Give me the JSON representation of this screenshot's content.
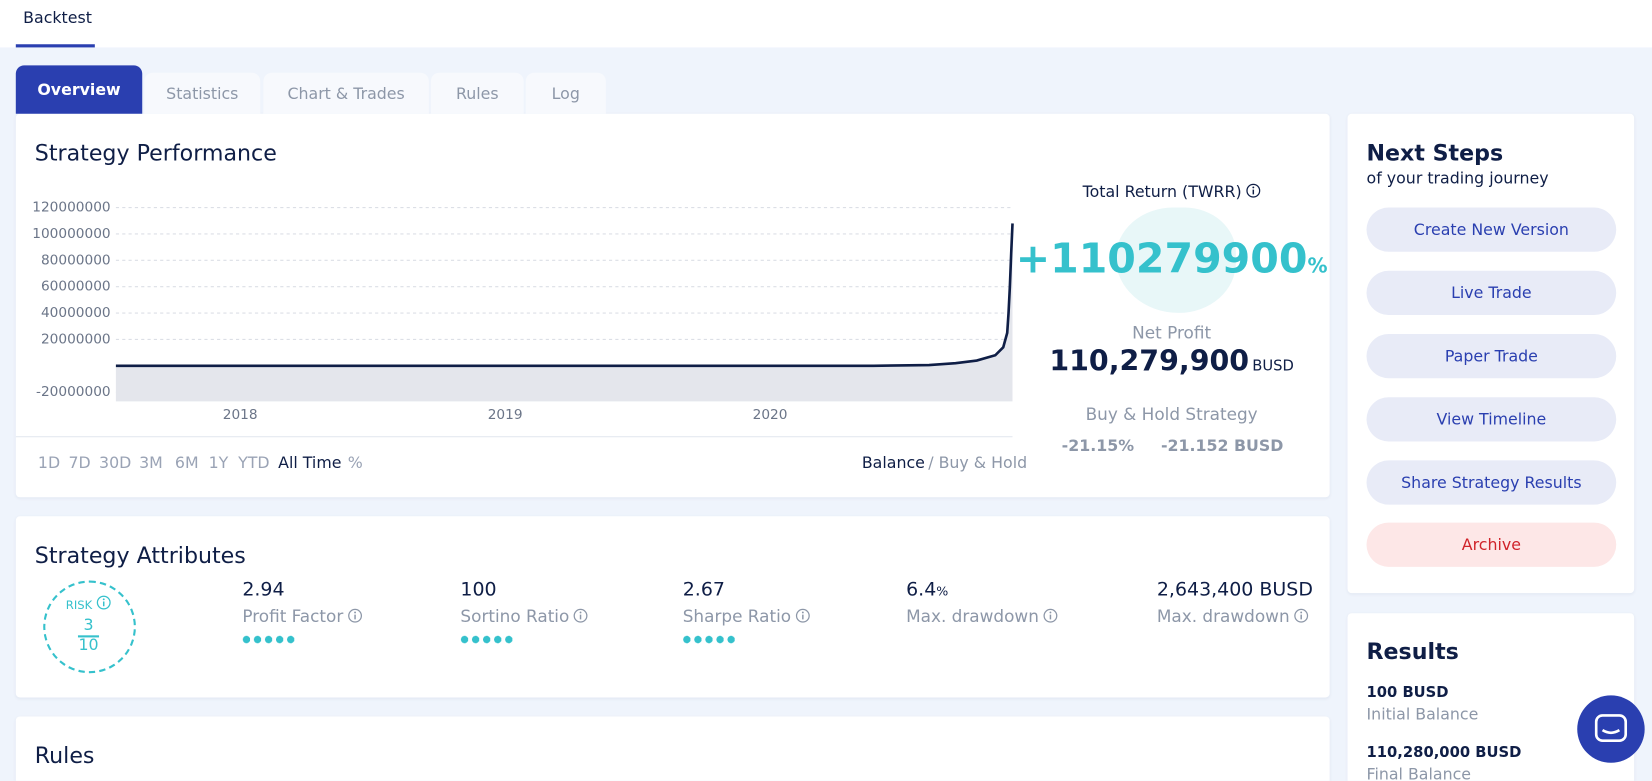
{
  "header": {
    "tab": "Backtest"
  },
  "tabs": [
    "Overview",
    "Statistics",
    "Chart & Trades",
    "Rules",
    "Log"
  ],
  "performance": {
    "title": "Strategy Performance",
    "chart": {
      "type": "line",
      "color": "#0f1e46",
      "area_color": "#e4e6ec",
      "grid": true,
      "x": [
        2017.531,
        2020.39,
        2020.6,
        2020.7,
        2020.78,
        2020.85,
        2020.88,
        2020.895,
        2020.9,
        2020.905,
        2020.91,
        2020.915
      ],
      "values": [
        100,
        100,
        600000,
        2000000,
        4000000,
        8000000,
        14000000,
        25000000,
        40000000,
        60000000,
        85000000,
        108000000
      ],
      "xlim": [
        2017.531,
        2020.915
      ],
      "xticks": [
        2018,
        2019,
        2020
      ],
      "ylim": [
        -27000000,
        120000000
      ],
      "yticks": [
        -20000000,
        20000000,
        40000000,
        60000000,
        80000000,
        100000000,
        120000000
      ]
    },
    "ranges": [
      "1D",
      "7D",
      "30D",
      "3M",
      "6M",
      "1Y",
      "YTD",
      "All Time",
      "%"
    ],
    "legend": [
      "Balance",
      "/ Buy & Hold"
    ],
    "total_return_label": "Total Return (TWRR)",
    "total_return": "+110279900",
    "total_return_unit": "%",
    "net_profit_label": "Net Profit",
    "net_profit": "110,279,900",
    "net_profit_unit": "BUSD",
    "buy_hold_label": "Buy & Hold Strategy",
    "buy_hold_pct": "-21.15%",
    "buy_hold_busd": "-21.152 BUSD"
  },
  "attributes": {
    "title": "Strategy Attributes",
    "risk_label": "RISK",
    "risk": "3",
    "risk_max": "10",
    "items": [
      {
        "value": "2.94",
        "label": "Profit Factor"
      },
      {
        "value": "100",
        "label": "Sortino Ratio"
      },
      {
        "value": "2.67",
        "label": "Sharpe Ratio"
      },
      {
        "value": "6.4",
        "unit": "%",
        "label": "Max. drawdown"
      },
      {
        "value": "2,643,400 BUSD",
        "label": "Max. drawdown"
      }
    ]
  },
  "rules": {
    "title": "Rules"
  },
  "next_steps": {
    "title": "Next Steps",
    "subtitle": "of your trading journey",
    "buttons": [
      "Create New Version",
      "Live Trade",
      "Paper Trade",
      "View Timeline",
      "Share Strategy Results",
      "Archive"
    ]
  },
  "results": {
    "title": "Results",
    "items": [
      {
        "value": "100 BUSD",
        "label": "Initial Balance"
      },
      {
        "value": "110,280,000 BUSD",
        "label": "Final Balance"
      }
    ]
  }
}
